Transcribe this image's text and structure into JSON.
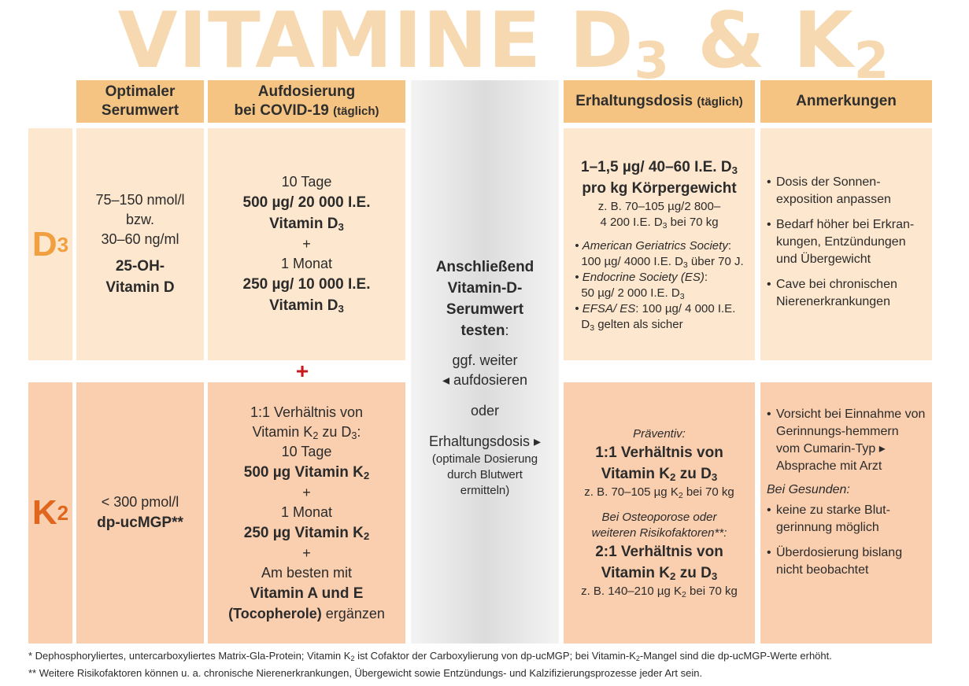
{
  "title": {
    "main": "VITAMINE D",
    "sub1": "3",
    "amp": " & K",
    "sub2": "2"
  },
  "headers": {
    "serum_line1": "Optimaler",
    "serum_line2": "Serumwert",
    "auf_line1": "Aufdosierung",
    "auf_line2": "bei COVID-19",
    "auf_suffix": "(täglich)",
    "erh_main": "Erhaltungsdosis",
    "erh_suffix": "(täglich)",
    "anm": "Anmerkungen"
  },
  "rows": {
    "d3_label": "D",
    "d3_sub": "3",
    "k2_label": "K",
    "k2_sub": "2",
    "plus": "+"
  },
  "d3": {
    "serum_1": "75–150 nmol/l",
    "serum_2": "bzw.",
    "serum_3": "30–60 ng/ml",
    "serum_4": "25-OH-",
    "serum_5": "Vitamin D",
    "auf_1": "10 Tage",
    "auf_2": "500 µg/ 20 000 I.E.",
    "auf_3": "Vitamin D",
    "auf_3_sub": "3",
    "auf_plus": "+",
    "auf_4": "1 Monat",
    "auf_5": "250 µg/ 10 000 I.E.",
    "auf_6": "Vitamin D",
    "auf_6_sub": "3",
    "erh_1a": "1–1,5 µg/ 40–60 I.E. D",
    "erh_1sub": "3",
    "erh_2": "pro kg Körpergewicht",
    "erh_3": "z. B. 70–105 µg/2 800–",
    "erh_4a": "4 200 I.E. D",
    "erh_4sub": "3",
    "erh_4b": " bei 70 kg",
    "ags_name": "American Geriatrics Society",
    "ags_text_a": "100 µg/ 4000 I.E. D",
    "ags_sub": "3",
    "ags_text_b": " über 70 J.",
    "es_name": "Endocrine Society (ES)",
    "es_text_a": "50 µg/ 2 000 I.E. D",
    "es_sub": "3",
    "efsa_name": "EFSA/ ES",
    "efsa_text": ": 100 µg/ 4 000 I.E.",
    "efsa_text2a": "D",
    "efsa_sub": "3",
    "efsa_text2b": " gelten als sicher",
    "notes": [
      "Dosis der Sonnen-exposition anpassen",
      "Bedarf höher bei Erkran-kungen, Entzündungen und Übergewicht",
      "Cave bei chronischen Nierenerkrankungen"
    ]
  },
  "middle": {
    "line1": "Anschließend",
    "line2": "Vitamin-D-",
    "line3": "Serumwert",
    "line4": "testen",
    "line4_colon": ":",
    "line5": "ggf. weiter",
    "line6": "◂ aufdosieren",
    "line7": "oder",
    "line8": "Erhaltungsdosis ▸",
    "line9": "(optimale Dosierung",
    "line10": "durch Blutwert",
    "line11": "ermitteln)"
  },
  "k2": {
    "serum_1": "< 300 pmol/l",
    "serum_2": "dp-ucMGP**",
    "auf_1": "1:1 Verhältnis von",
    "auf_2a": "Vitamin K",
    "auf_2sub": "2",
    "auf_2b": " zu D",
    "auf_2sub2": "3",
    "auf_2c": ":",
    "auf_3": "10 Tage",
    "auf_4a": "500 µg Vitamin K",
    "auf_4sub": "2",
    "auf_plus1": "+",
    "auf_5": "1 Monat",
    "auf_6a": "250 µg Vitamin K",
    "auf_6sub": "2",
    "auf_plus2": "+",
    "auf_7": "Am besten mit",
    "auf_8": "Vitamin A und E",
    "auf_9a": "(Tocopherole)",
    "auf_9b": " ergänzen",
    "erh_prev": "Präventiv:",
    "erh_1": "1:1 Verhältnis von",
    "erh_2a": "Vitamin K",
    "erh_2sub": "2",
    "erh_2b": " zu D",
    "erh_2sub2": "3",
    "erh_3a": "z. B. 70–105 µg K",
    "erh_3sub": "2",
    "erh_3b": " bei 70 kg",
    "erh_osteo1": "Bei Osteoporose oder",
    "erh_osteo2": "weiteren Risikofaktoren**:",
    "erh_4": "2:1 Verhältnis von",
    "erh_5a": "Vitamin K",
    "erh_5sub": "2",
    "erh_5b": " zu D",
    "erh_5sub2": "3",
    "erh_6a": "z. B. 140–210 µg K",
    "erh_6sub": "2",
    "erh_6b": " bei 70 kg",
    "notes1": [
      "Vorsicht bei Einnahme von Gerinnungs-hemmern vom Cumarin-Typ ▸ Absprache mit Arzt"
    ],
    "healthy": "Bei Gesunden:",
    "notes2": [
      "keine zu starke Blut-gerinnung möglich",
      "Überdosierung bislang nicht beobachtet"
    ]
  },
  "footnotes": {
    "f1a": "* Dephosphoryliertes, untercarboxyliertes Matrix-Gla-Protein; Vitamin K",
    "f1sub": "2",
    "f1b": " ist Cofaktor der Carboxylierung von dp-ucMGP; bei Vitamin-K",
    "f1sub2": "2",
    "f1c": "-Mangel sind die dp-ucMGP-Werte erhöht.",
    "f2": "** Weitere Risikofaktoren können u. a. chronische Nierenerkrankungen, Übergewicht sowie Entzündungs- und Kalzifizierungsprozesse jeder Art sein."
  },
  "colors": {
    "header": "#f5c483",
    "d3_row": "#fde7ce",
    "k2_row": "#f9cfaf",
    "title": "#f6d9b0",
    "d3_label": "#f0a040",
    "k2_label": "#e0661d",
    "plus_red": "#c8191f"
  }
}
